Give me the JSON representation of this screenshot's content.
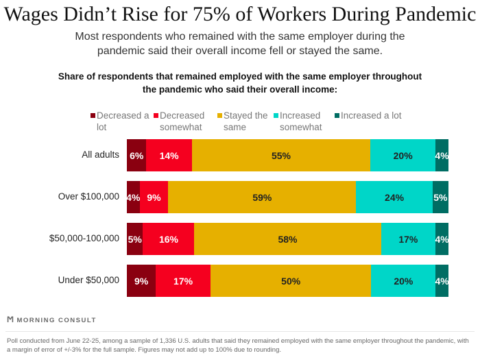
{
  "header": {
    "title": "Wages Didn’t Rise for 75% of Workers During Pandemic",
    "subtitle": "Most respondents who remained with the same employer during the pandemic said their overall income fell or stayed the same."
  },
  "chart_data": {
    "type": "bar",
    "orientation": "horizontal",
    "stacked": true,
    "title": "Share of respondents that remained employed with the same employer throughout the pandemic who said their overall income:",
    "categories": [
      "All adults",
      "Over $100,000",
      "$50,000-100,000",
      "Under $50,000"
    ],
    "legend_position": "top",
    "series": [
      {
        "name": "Decreased a lot",
        "color": "#8a0010",
        "label_color": "#ffffff",
        "values": [
          6,
          4,
          5,
          9
        ]
      },
      {
        "name": "Decreased somewhat",
        "color": "#f5001f",
        "label_color": "#ffffff",
        "values": [
          14,
          9,
          16,
          17
        ]
      },
      {
        "name": "Stayed the same",
        "color": "#e6b000",
        "label_color": "#222222",
        "values": [
          55,
          59,
          58,
          50
        ]
      },
      {
        "name": "Increased somewhat",
        "color": "#00d6c8",
        "label_color": "#222222",
        "values": [
          20,
          24,
          17,
          20
        ]
      },
      {
        "name": "Increased a lot",
        "color": "#006d63",
        "label_color": "#ffffff",
        "values": [
          4,
          5,
          4,
          4
        ]
      }
    ],
    "value_suffix": "%",
    "grid": false
  },
  "footer": {
    "brand": "MORNING CONSULT",
    "note": "Poll conducted from June 22-25, among a sample of 1,336 U.S. adults that said they remained employed with the same employer throughout the pandemic, with a margin of error of +/-3% for the full sample. Figures may not add up to 100% due to rounding."
  }
}
